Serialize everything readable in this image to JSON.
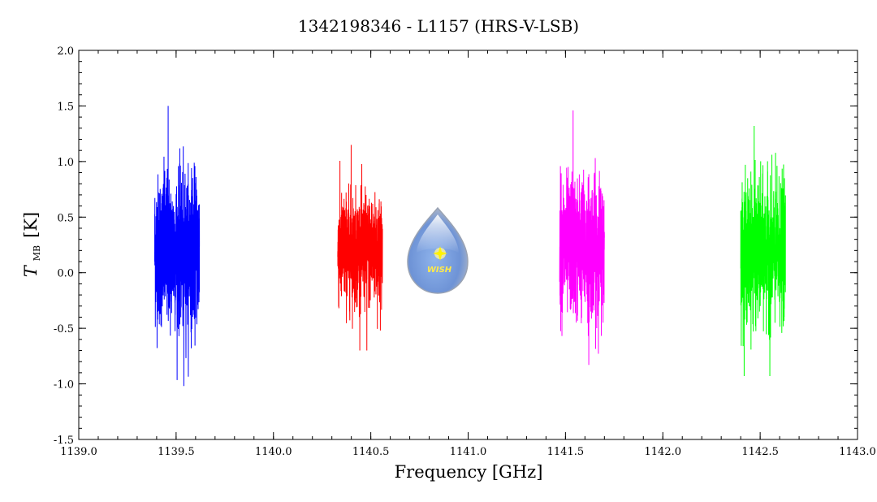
{
  "chart_data": {
    "type": "line",
    "title": "1342198346 - L1157 (HRS-V-LSB)",
    "xlabel": "Frequency [GHz]",
    "ylabel": {
      "symbol": "T",
      "subscript": "MB",
      "unit": "[K]"
    },
    "xlim": [
      1139.0,
      1143.0
    ],
    "ylim": [
      -1.5,
      2.0
    ],
    "xticks": [
      {
        "value": 1139.0,
        "label": "1139.0"
      },
      {
        "value": 1139.5,
        "label": "1139.5"
      },
      {
        "value": 1140.0,
        "label": "1140.0"
      },
      {
        "value": 1140.5,
        "label": "1140.5"
      },
      {
        "value": 1141.0,
        "label": "1141.0"
      },
      {
        "value": 1141.5,
        "label": "1141.5"
      },
      {
        "value": 1142.0,
        "label": "1142.0"
      },
      {
        "value": 1142.5,
        "label": "1142.5"
      },
      {
        "value": 1143.0,
        "label": "1143.0"
      }
    ],
    "yticks": [
      {
        "value": -1.5,
        "label": "-1.5"
      },
      {
        "value": -1.0,
        "label": "-1.0"
      },
      {
        "value": -0.5,
        "label": "-0.5"
      },
      {
        "value": 0.0,
        "label": "0.0"
      },
      {
        "value": 0.5,
        "label": "0.5"
      },
      {
        "value": 1.0,
        "label": "1.0"
      },
      {
        "value": 1.5,
        "label": "1.5"
      },
      {
        "value": 2.0,
        "label": "2.0"
      }
    ],
    "grid": false,
    "series": [
      {
        "color": "#0000ff",
        "x_range": [
          1139.39,
          1139.62
        ],
        "y_min": -1.02,
        "y_max": 1.5
      },
      {
        "color": "#ff0000",
        "x_range": [
          1140.33,
          1140.56
        ],
        "y_min": -0.7,
        "y_max": 1.15
      },
      {
        "color": "#ff00ff",
        "x_range": [
          1141.47,
          1141.7
        ],
        "y_min": -0.83,
        "y_max": 1.46
      },
      {
        "color": "#00ff00",
        "x_range": [
          1142.4,
          1142.63
        ],
        "y_min": -0.93,
        "y_max": 1.32
      }
    ],
    "logo": {
      "text": "WISH"
    }
  }
}
